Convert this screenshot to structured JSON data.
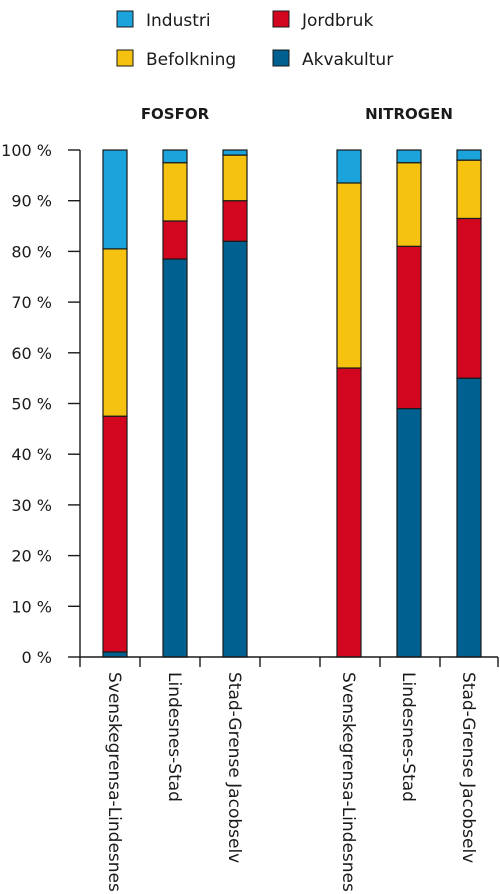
{
  "chart_data": {
    "type": "bar",
    "stacked": true,
    "ylim": [
      0,
      100
    ],
    "y_ticks": [
      {
        "value": 0,
        "label": "0 %"
      },
      {
        "value": 10,
        "label": "10 %"
      },
      {
        "value": 20,
        "label": "20 %"
      },
      {
        "value": 30,
        "label": "30 %"
      },
      {
        "value": 40,
        "label": "40 %"
      },
      {
        "value": 50,
        "label": "50 %"
      },
      {
        "value": 60,
        "label": "60 %"
      },
      {
        "value": 70,
        "label": "70 %"
      },
      {
        "value": 80,
        "label": "80 %"
      },
      {
        "value": 90,
        "label": "90 %"
      },
      {
        "value": 100,
        "label": "100 %"
      }
    ],
    "legend": [
      {
        "name": "Industri",
        "color": "#1ba3dc"
      },
      {
        "name": "Jordbruk",
        "color": "#d2071f"
      },
      {
        "name": "Befolkning",
        "color": "#f4c20f"
      },
      {
        "name": "Akvakultur",
        "color": "#00608f"
      }
    ],
    "groups": [
      {
        "title": "FOSFOR",
        "categories": [
          "Svenskegrensa-Lindesnes",
          "Lindesnes-Stad",
          "Stad-Grense Jacobselv"
        ],
        "series": [
          {
            "name": "Akvakultur",
            "values": [
              1,
              78.5,
              82
            ]
          },
          {
            "name": "Jordbruk",
            "values": [
              46.5,
              7.5,
              8
            ]
          },
          {
            "name": "Befolkning",
            "values": [
              33,
              11.5,
              9
            ]
          },
          {
            "name": "Industri",
            "values": [
              19.5,
              2.5,
              1
            ]
          }
        ]
      },
      {
        "title": "NITROGEN",
        "categories": [
          "Svenskegrensa-Lindesnes",
          "Lindesnes-Stad",
          "Stad-Grense Jacobselv"
        ],
        "series": [
          {
            "name": "Akvakultur",
            "values": [
              0,
              49,
              55
            ]
          },
          {
            "name": "Jordbruk",
            "values": [
              57,
              32,
              31.5
            ]
          },
          {
            "name": "Befolkning",
            "values": [
              36.5,
              16.5,
              11.5
            ]
          },
          {
            "name": "Industri",
            "values": [
              6.5,
              2.5,
              2
            ]
          }
        ]
      }
    ]
  }
}
